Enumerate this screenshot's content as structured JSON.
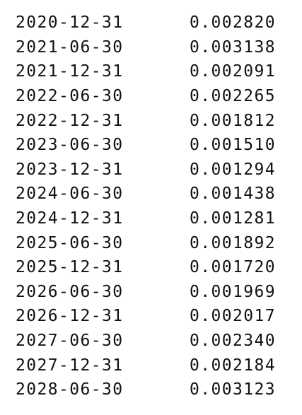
{
  "rows": [
    {
      "date": "2020-12-31",
      "value": "0.002820"
    },
    {
      "date": "2021-06-30",
      "value": "0.003138"
    },
    {
      "date": "2021-12-31",
      "value": "0.002091"
    },
    {
      "date": "2022-06-30",
      "value": "0.002265"
    },
    {
      "date": "2022-12-31",
      "value": "0.001812"
    },
    {
      "date": "2023-06-30",
      "value": "0.001510"
    },
    {
      "date": "2023-12-31",
      "value": "0.001294"
    },
    {
      "date": "2024-06-30",
      "value": "0.001438"
    },
    {
      "date": "2024-12-31",
      "value": "0.001281"
    },
    {
      "date": "2025-06-30",
      "value": "0.001892"
    },
    {
      "date": "2025-12-31",
      "value": "0.001720"
    },
    {
      "date": "2026-06-30",
      "value": "0.001969"
    },
    {
      "date": "2026-12-31",
      "value": "0.002017"
    },
    {
      "date": "2027-06-30",
      "value": "0.002340"
    },
    {
      "date": "2027-12-31",
      "value": "0.002184"
    },
    {
      "date": "2028-06-30",
      "value": "0.003123"
    }
  ]
}
